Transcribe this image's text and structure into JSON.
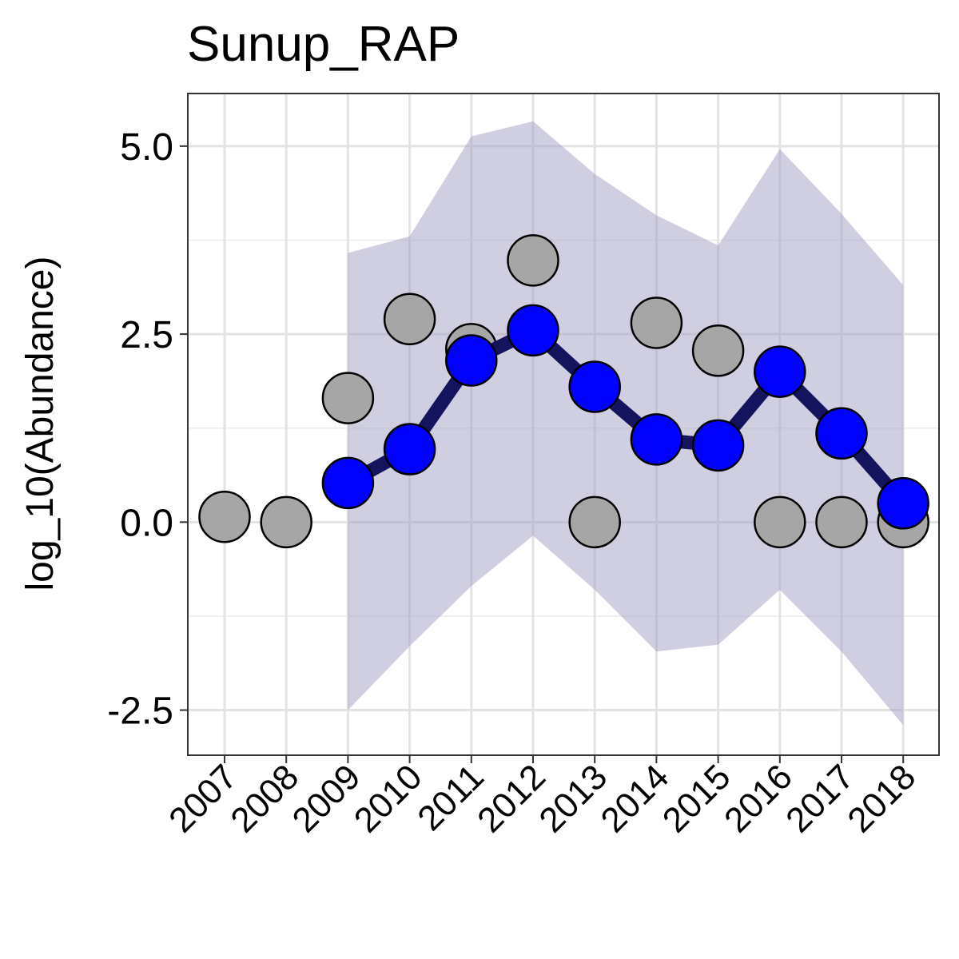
{
  "chart_data": {
    "type": "line",
    "title": "Sunup_RAP",
    "xlabel": "",
    "ylabel": "log_10(Abundance)",
    "x": [
      "2007",
      "2008",
      "2009",
      "2010",
      "2011",
      "2012",
      "2013",
      "2014",
      "2015",
      "2016",
      "2017",
      "2018"
    ],
    "y_ticks": [
      "-2.5",
      "0.0",
      "2.5",
      "5.0"
    ],
    "y_tick_values": [
      -2.5,
      0.0,
      2.5,
      5.0
    ],
    "ylim": [
      -3.1,
      5.7
    ],
    "grid": true,
    "legend": "none",
    "observed": {
      "color": "#a6a6a6",
      "values": [
        0.07,
        0.0,
        1.65,
        2.7,
        2.3,
        3.48,
        0.0,
        2.65,
        2.28,
        0.0,
        0.0,
        0.0
      ]
    },
    "estimate": {
      "point_color": "#0000ff",
      "line_color": "#14145e",
      "values": [
        null,
        null,
        0.52,
        0.97,
        2.15,
        2.55,
        1.8,
        1.1,
        1.02,
        2.0,
        1.18,
        0.25
      ]
    },
    "interval": {
      "color": "#a0a0c4",
      "lower": [
        null,
        null,
        -2.5,
        -1.65,
        -0.85,
        -0.18,
        -0.9,
        -1.72,
        -1.63,
        -0.9,
        -1.72,
        -2.7
      ],
      "upper": [
        null,
        null,
        3.58,
        3.8,
        5.13,
        5.33,
        4.63,
        4.08,
        3.68,
        4.96,
        4.1,
        3.15
      ]
    }
  }
}
